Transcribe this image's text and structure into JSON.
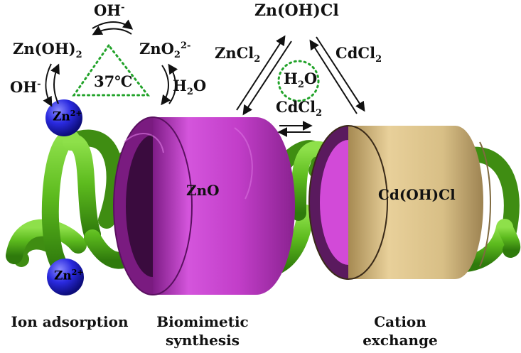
{
  "reactions": {
    "oh_top": {
      "base": "OH",
      "sup": "-"
    },
    "zn_oh_2": {
      "base": "Zn(OH)",
      "sub": "2"
    },
    "zno2": {
      "base": "ZnO",
      "sub": "2",
      "sup": "2-"
    },
    "oh_left": {
      "base": "OH",
      "sup": "-"
    },
    "h2o_right": {
      "base": "H",
      "sub": "2",
      "tail": "O"
    },
    "temperature": "37℃",
    "zn_oh_cl": "Zn(OH)Cl",
    "zncl2": {
      "base": "ZnCl",
      "sub": "2"
    },
    "cdcl2_right": {
      "base": "CdCl",
      "sub": "2"
    },
    "h2o_center": {
      "base": "H",
      "sub": "2",
      "tail": "O"
    },
    "cdcl2_center": {
      "base": "CdCl",
      "sub": "2"
    }
  },
  "ions": {
    "top": {
      "base": "Zn",
      "sup": "2+"
    },
    "bottom": {
      "base": "Zn",
      "sup": "2+"
    }
  },
  "tubes": {
    "zno": "ZnO",
    "cdohcl": "Cd(OH)Cl"
  },
  "stages": {
    "ion_adsorption": "Ion adsorption",
    "biomimetic_line1": "Biomimetic",
    "biomimetic_line2": "synthesis",
    "cation_line1": "Cation",
    "cation_line2": "exchange"
  },
  "colors": {
    "helix": "#5dbb1e",
    "zno_tube": "#c23ec9",
    "cdohcl_tube": "#d8bf86",
    "ion_sphere": "#2a2ae0",
    "dotted_outline": "#22a32a"
  }
}
